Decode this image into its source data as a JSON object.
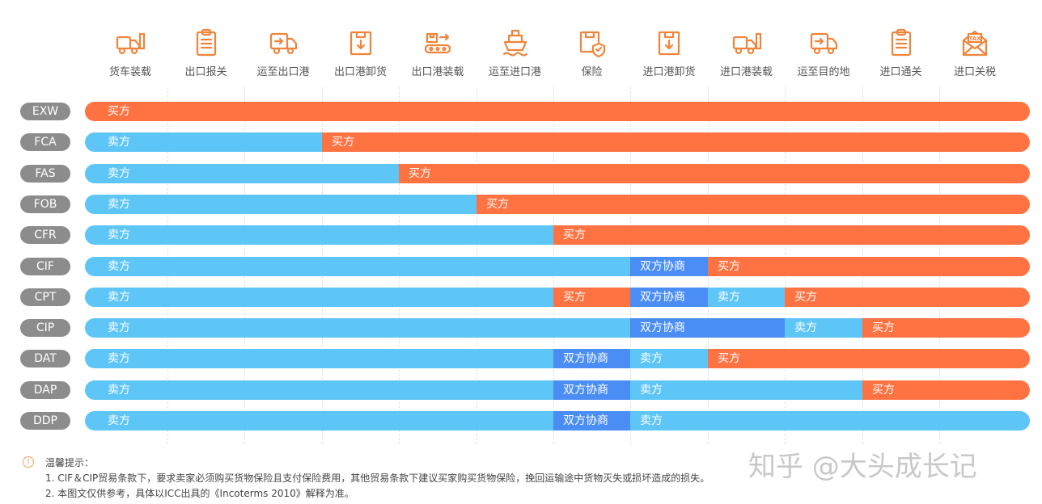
{
  "colors": {
    "seller": "#5EC6F7",
    "buyer": "#FF7343",
    "both": "#4A8EF5",
    "icon": "#F0843A",
    "pill": "#8c8c8c"
  },
  "legend": {
    "seller": "卖方",
    "buyer": "买方",
    "both": "双方协商"
  },
  "steps": [
    {
      "label": "货车装载",
      "icon": "truck-loading-icon"
    },
    {
      "label": "出口报关",
      "icon": "clipboard-icon"
    },
    {
      "label": "运至出口港",
      "icon": "delivery-truck-icon"
    },
    {
      "label": "出口港卸货",
      "icon": "box-unload-icon"
    },
    {
      "label": "出口港装载",
      "icon": "conveyor-icon"
    },
    {
      "label": "运至进口港",
      "icon": "ship-icon"
    },
    {
      "label": "保险",
      "icon": "insurance-box-icon"
    },
    {
      "label": "进口港卸货",
      "icon": "box-unload-icon"
    },
    {
      "label": "进口港装载",
      "icon": "truck-loading-icon"
    },
    {
      "label": "运至目的地",
      "icon": "delivery-truck-icon"
    },
    {
      "label": "进口通关",
      "icon": "clipboard-icon"
    },
    {
      "label": "进口关税",
      "icon": "tax-envelope-icon"
    }
  ],
  "terms": [
    {
      "code": "EXW",
      "segments": [
        {
          "party": "buyer",
          "from": 0,
          "to": 12
        }
      ]
    },
    {
      "code": "FCA",
      "segments": [
        {
          "party": "seller",
          "from": 0,
          "to": 3
        },
        {
          "party": "buyer",
          "from": 3,
          "to": 12
        }
      ]
    },
    {
      "code": "FAS",
      "segments": [
        {
          "party": "seller",
          "from": 0,
          "to": 4
        },
        {
          "party": "buyer",
          "from": 4,
          "to": 12
        }
      ]
    },
    {
      "code": "FOB",
      "segments": [
        {
          "party": "seller",
          "from": 0,
          "to": 5
        },
        {
          "party": "buyer",
          "from": 5,
          "to": 12
        }
      ]
    },
    {
      "code": "CFR",
      "segments": [
        {
          "party": "seller",
          "from": 0,
          "to": 6
        },
        {
          "party": "buyer",
          "from": 6,
          "to": 12
        }
      ]
    },
    {
      "code": "CIF",
      "segments": [
        {
          "party": "seller",
          "from": 0,
          "to": 7
        },
        {
          "party": "both",
          "from": 7,
          "to": 8
        },
        {
          "party": "buyer",
          "from": 8,
          "to": 12
        }
      ]
    },
    {
      "code": "CPT",
      "segments": [
        {
          "party": "seller",
          "from": 0,
          "to": 6
        },
        {
          "party": "buyer",
          "from": 6,
          "to": 7
        },
        {
          "party": "both",
          "from": 7,
          "to": 8
        },
        {
          "party": "seller",
          "from": 8,
          "to": 9
        },
        {
          "party": "buyer",
          "from": 9,
          "to": 12
        }
      ]
    },
    {
      "code": "CIP",
      "segments": [
        {
          "party": "seller",
          "from": 0,
          "to": 7
        },
        {
          "party": "both",
          "from": 7,
          "to": 9
        },
        {
          "party": "seller",
          "from": 9,
          "to": 10
        },
        {
          "party": "buyer",
          "from": 10,
          "to": 12
        }
      ]
    },
    {
      "code": "DAT",
      "segments": [
        {
          "party": "seller",
          "from": 0,
          "to": 6
        },
        {
          "party": "both",
          "from": 6,
          "to": 7
        },
        {
          "party": "seller",
          "from": 7,
          "to": 8
        },
        {
          "party": "buyer",
          "from": 8,
          "to": 12
        }
      ]
    },
    {
      "code": "DAP",
      "segments": [
        {
          "party": "seller",
          "from": 0,
          "to": 6
        },
        {
          "party": "both",
          "from": 6,
          "to": 7
        },
        {
          "party": "seller",
          "from": 7,
          "to": 10
        },
        {
          "party": "buyer",
          "from": 10,
          "to": 12
        }
      ]
    },
    {
      "code": "DDP",
      "segments": [
        {
          "party": "seller",
          "from": 0,
          "to": 6
        },
        {
          "party": "both",
          "from": 6,
          "to": 7
        },
        {
          "party": "seller",
          "from": 7,
          "to": 12
        }
      ]
    }
  ],
  "notes": {
    "title": "温馨提示：",
    "items": [
      "1. CIF＆CIP贸易条款下，要求卖家必须购买货物保险且支付保险费用，其他贸易条款下建议买家购买货物保险，挽回运输途中货物灭失或损坏造成的损失。",
      "2. 本图文仅供参考，具体以ICC出具的《Incoterms 2010》解释为准。"
    ]
  },
  "watermark": "知乎 @大头成长记"
}
